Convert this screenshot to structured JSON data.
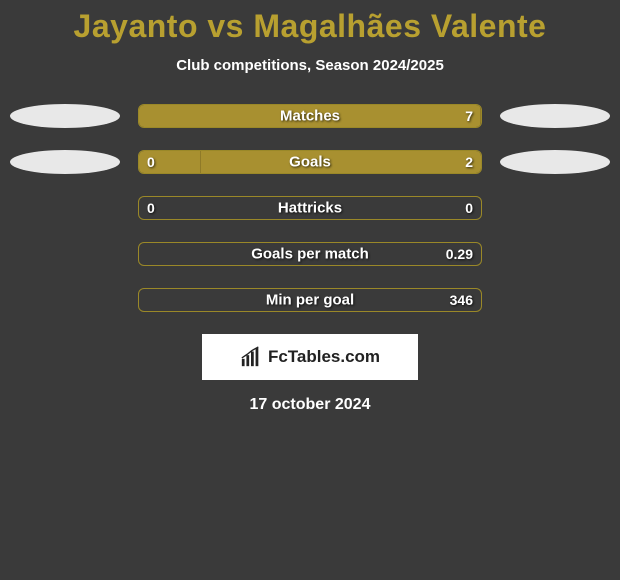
{
  "title": "Jayanto vs Magalhães Valente",
  "subtitle": "Club competitions, Season 2024/2025",
  "logo_text": "FcTables.com",
  "date": "17 october 2024",
  "colors": {
    "background": "#3a3a3a",
    "accent": "#a89030",
    "title": "#b8a030",
    "text": "#ffffff",
    "ellipse": "#e8e8e8",
    "bar_border": "#9a8828"
  },
  "stats": [
    {
      "label": "Matches",
      "left_val": "",
      "right_val": "7",
      "left_fill_pct": 100,
      "right_fill_pct": 100,
      "show_left_ellipse": true,
      "show_right_ellipse": true
    },
    {
      "label": "Goals",
      "left_val": "0",
      "right_val": "2",
      "left_fill_pct": 18,
      "right_fill_pct": 82,
      "show_left_ellipse": true,
      "show_right_ellipse": true
    },
    {
      "label": "Hattricks",
      "left_val": "0",
      "right_val": "0",
      "left_fill_pct": 0,
      "right_fill_pct": 0,
      "show_left_ellipse": false,
      "show_right_ellipse": false
    },
    {
      "label": "Goals per match",
      "left_val": "",
      "right_val": "0.29",
      "left_fill_pct": 0,
      "right_fill_pct": 0,
      "show_left_ellipse": false,
      "show_right_ellipse": false
    },
    {
      "label": "Min per goal",
      "left_val": "",
      "right_val": "346",
      "left_fill_pct": 0,
      "right_fill_pct": 0,
      "show_left_ellipse": false,
      "show_right_ellipse": false
    }
  ]
}
